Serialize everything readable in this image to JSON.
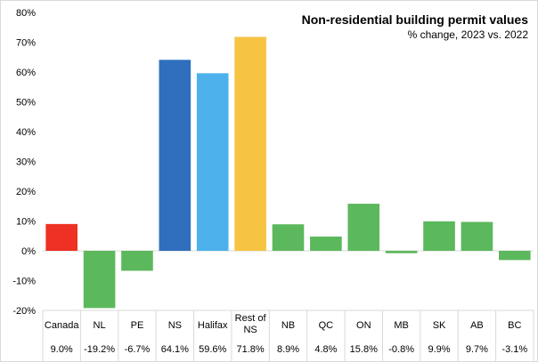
{
  "chart_data": {
    "type": "bar",
    "title": "Non-residential building permit values",
    "subtitle": "% change, 2023 vs. 2022",
    "categories": [
      [
        "Canada"
      ],
      [
        "NL"
      ],
      [
        "PE"
      ],
      [
        "NS"
      ],
      [
        "Halifax"
      ],
      [
        "Rest of",
        "NS"
      ],
      [
        "NB"
      ],
      [
        "QC"
      ],
      [
        "ON"
      ],
      [
        "MB"
      ],
      [
        "SK"
      ],
      [
        "AB"
      ],
      [
        "BC"
      ]
    ],
    "values": [
      9.0,
      -19.2,
      -6.7,
      64.1,
      59.6,
      71.8,
      8.9,
      4.8,
      15.8,
      -0.8,
      9.9,
      9.7,
      -3.1
    ],
    "value_labels": [
      "9.0%",
      "-19.2%",
      "-6.7%",
      "64.1%",
      "59.6%",
      "71.8%",
      "8.9%",
      "4.8%",
      "15.8%",
      "-0.8%",
      "9.9%",
      "9.7%",
      "-3.1%"
    ],
    "colors": [
      "#ee3124",
      "#5cb85c",
      "#5cb85c",
      "#2f6fbd",
      "#4db1ec",
      "#f6c343",
      "#5cb85c",
      "#5cb85c",
      "#5cb85c",
      "#5cb85c",
      "#5cb85c",
      "#5cb85c",
      "#5cb85c"
    ],
    "yticks": [
      "80%",
      "70%",
      "60%",
      "50%",
      "40%",
      "30%",
      "20%",
      "10%",
      "0%",
      "-10%",
      "-20%"
    ],
    "ylim": [
      -20,
      80
    ],
    "grid": false
  }
}
